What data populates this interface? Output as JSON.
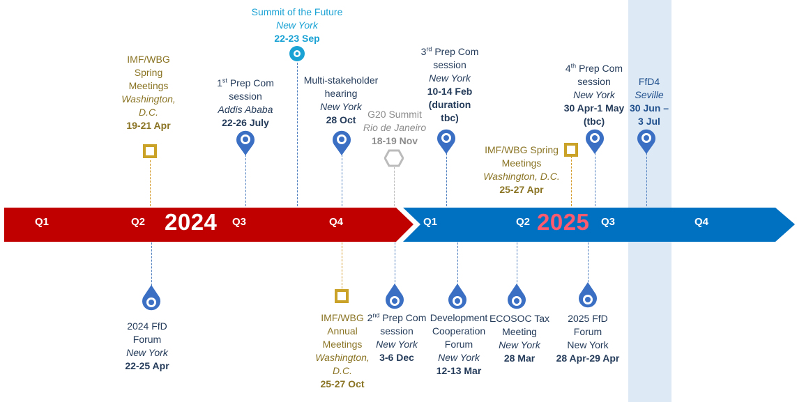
{
  "timeline": {
    "quarters": [
      "Q1",
      "Q2",
      "Q3",
      "Q4",
      "Q1",
      "Q2",
      "Q3",
      "Q4"
    ],
    "year_2024": "2024",
    "year_2025": "2025",
    "colors": {
      "red_arrow": "#c00000",
      "blue_arrow": "#0070c0",
      "year_2025": "#ff5b6e",
      "highlight_band": "#dde9f5",
      "gold": "#d4a62a",
      "pin_blue": "#3a6fc4",
      "cyan": "#1aa2d4"
    }
  },
  "events": {
    "imf_spring_2024": {
      "l1": "IMF/WBG",
      "l2": "Spring",
      "l3": "Meetings",
      "l4": "Washington,",
      "l5": "D.C.",
      "date": "19-21 Apr",
      "icon": "gold-square-icon"
    },
    "prepcom1": {
      "sup": "st",
      "num": "1",
      "l1": " Prep Com",
      "l2": "session",
      "loc": "Addis Ababa",
      "date": "22-26 July",
      "icon": "map-pin-icon"
    },
    "summit_future": {
      "l1": "Summit  of the Future",
      "loc": "New York",
      "date": "22-23 Sep",
      "icon": "ring-icon"
    },
    "multistakeholder": {
      "l1": "Multi-stakeholder",
      "l2": "hearing",
      "loc": "New York",
      "date": "28 Oct",
      "icon": "map-pin-icon"
    },
    "g20": {
      "l1": "G20 Summit",
      "loc": "Rio de Janeiro",
      "date": "18-19 Nov",
      "icon": "hexagon-icon"
    },
    "prepcom3": {
      "num": "3",
      "sup": "rd",
      "l1": " Prep Com",
      "l2": "session",
      "loc": "New York",
      "date1": "10-14 Feb",
      "date2": "(duration",
      "date3": "tbc)",
      "icon": "map-pin-icon"
    },
    "imf_spring_2025": {
      "l1": "IMF/WBG Spring",
      "l2": "Meetings",
      "loc": "Washington, D.C.",
      "date": "25-27 Apr",
      "icon": "gold-square-icon"
    },
    "prepcom4": {
      "num": "4",
      "sup": "th",
      "l1": " Prep Com",
      "l2": "session",
      "loc": "New York",
      "date1": "30 Apr-1 May",
      "date2": "(tbc)",
      "icon": "map-pin-icon"
    },
    "ffd4": {
      "l1": "FfD4",
      "loc": "Seville",
      "date1": "30 Jun –",
      "date2": "3 Jul",
      "icon": "map-pin-icon"
    },
    "ffd_forum_2024": {
      "l1": "2024 FfD",
      "l2": "Forum",
      "loc": "New York",
      "date": "22-25 Apr",
      "icon": "map-pin-icon"
    },
    "imf_annual_2024": {
      "l1": "IMF/WBG",
      "l2": "Annual",
      "l3": "Meetings",
      "l4": "Washington,",
      "l5": "D.C.",
      "date": "25-27 Oct",
      "icon": "gold-square-icon"
    },
    "prepcom2": {
      "num": "2",
      "sup": "nd",
      "l1": " Prep Com",
      "l2": "session",
      "loc": "New York",
      "date": "3-6 Dec",
      "icon": "map-pin-icon"
    },
    "dev_coop": {
      "l1": "Development",
      "l2": "Cooperation",
      "l3": "Forum",
      "loc": "New York",
      "date": "12-13 Mar",
      "icon": "map-pin-icon"
    },
    "ecosoc_tax": {
      "l1": "ECOSOC Tax",
      "l2": "Meeting",
      "loc": "New York",
      "date": "28 Mar",
      "icon": "map-pin-icon"
    },
    "ffd_forum_2025": {
      "l1": "2025 FfD",
      "l2": "Forum",
      "l3": "New York",
      "date": "28 Apr-29 Apr",
      "icon": "map-pin-icon"
    }
  }
}
